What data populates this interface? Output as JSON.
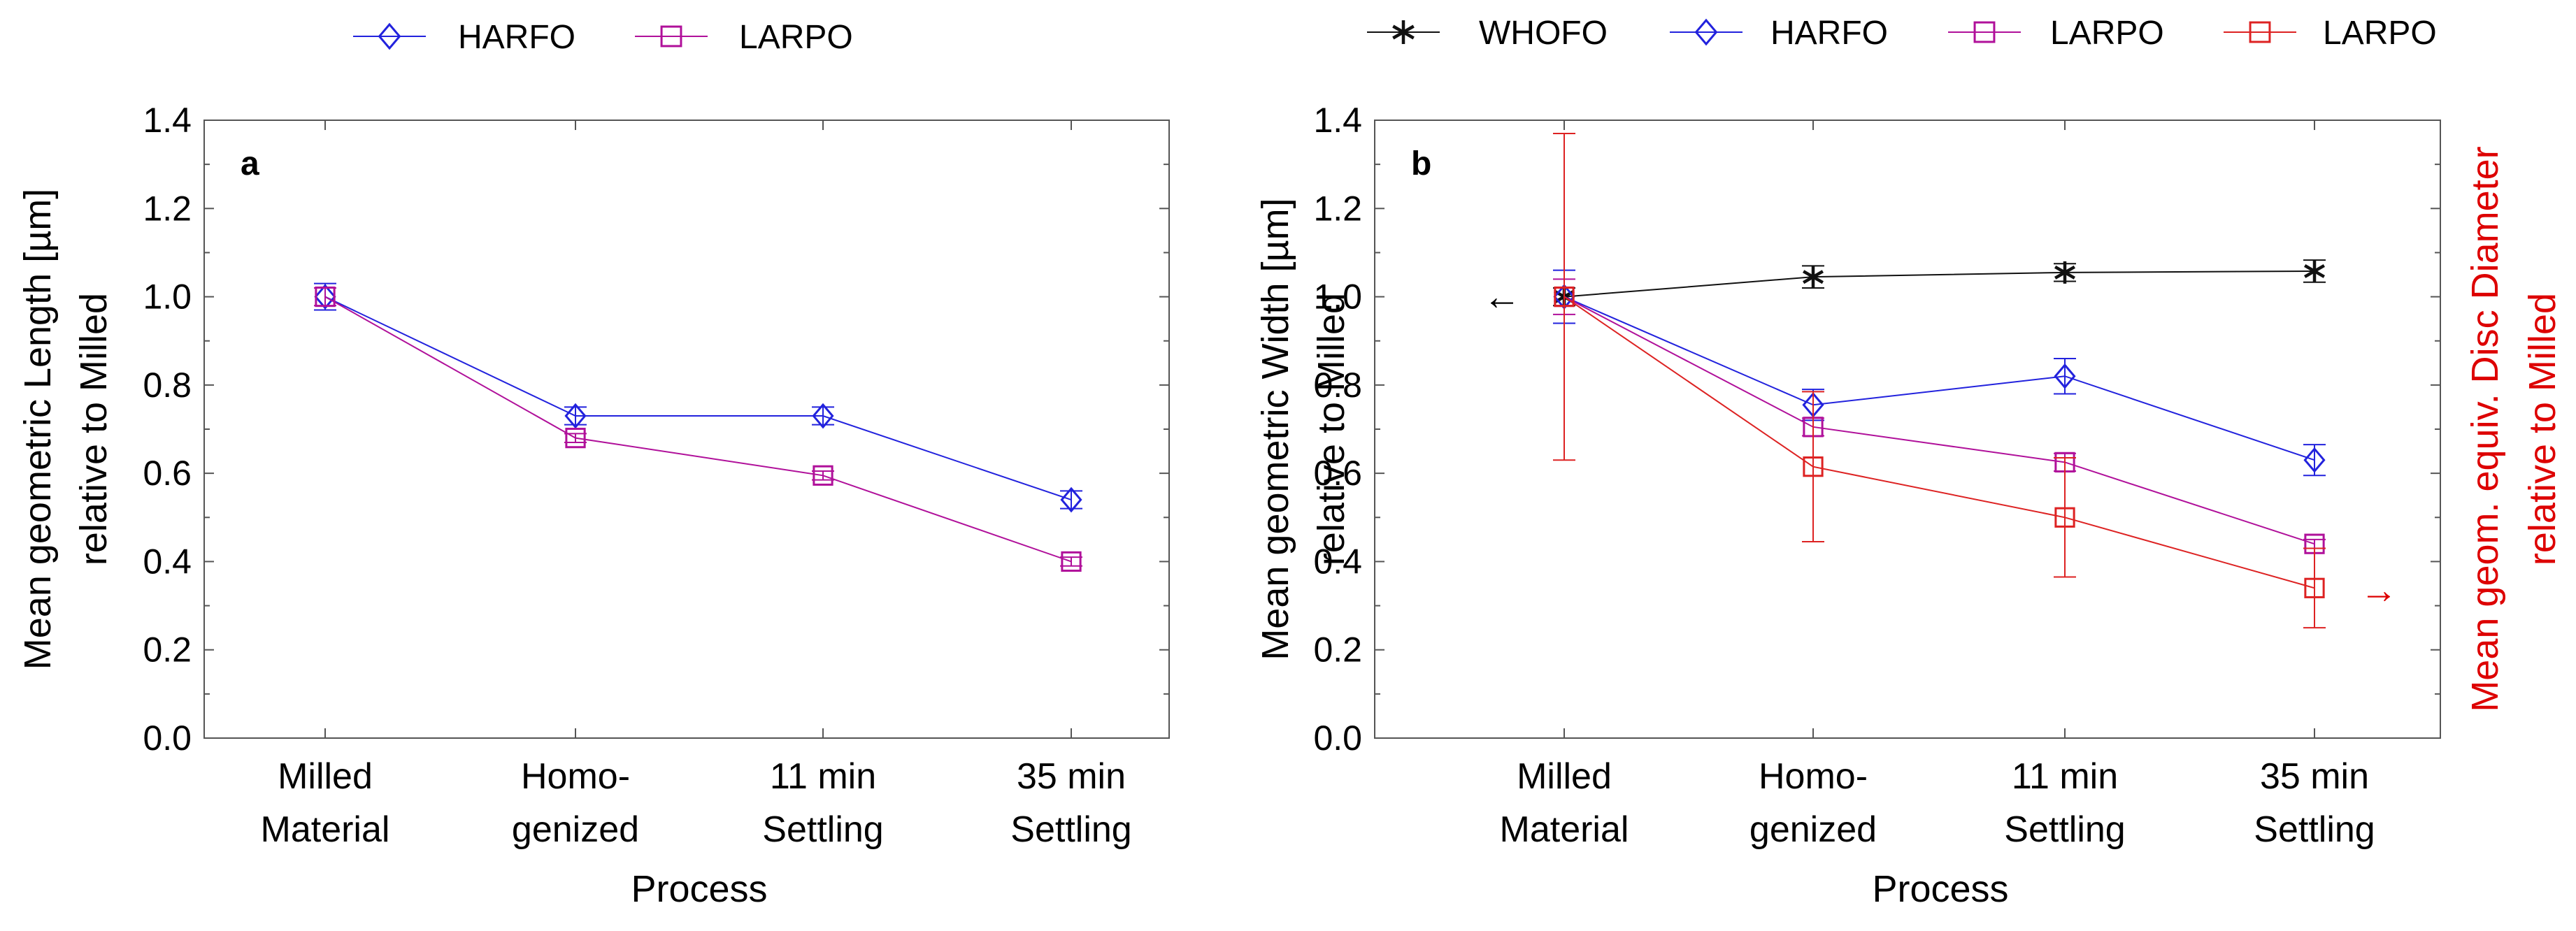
{
  "chart_data": [
    {
      "type": "line",
      "panel_label": "a",
      "ylabel": "Mean geometric Length [µm]",
      "ylabel2": "relative to Milled",
      "xlabel": "Process",
      "categories": [
        [
          "Milled",
          "Material"
        ],
        [
          "Homo-",
          "genized"
        ],
        [
          "11 min",
          "Settling"
        ],
        [
          "35 min",
          "Settling"
        ]
      ],
      "ylim": [
        0,
        1.4
      ],
      "yticks": [
        0.0,
        0.2,
        0.4,
        0.6,
        0.8,
        1.0,
        1.2,
        1.4
      ],
      "ytick_labels": [
        "0.0",
        "0.2",
        "0.4",
        "0.6",
        "0.8",
        "1.0",
        "1.2",
        "1.4"
      ],
      "legend_position": "top",
      "series": [
        {
          "name": "HARFO",
          "marker": "diamond",
          "color": "#2222dd",
          "values": [
            1.0,
            0.73,
            0.73,
            0.54
          ],
          "err": [
            0.03,
            0.02,
            0.02,
            0.02
          ]
        },
        {
          "name": "LARPO",
          "marker": "square",
          "color": "#b0109a",
          "values": [
            1.0,
            0.68,
            0.595,
            0.4
          ],
          "err": [
            0.02,
            0.01,
            0.01,
            0.01
          ]
        }
      ]
    },
    {
      "type": "line",
      "panel_label": "b",
      "ylabel": "Mean geometric Width [µm]",
      "ylabel2": "relative to Milled",
      "ylabel_right": "Mean geom. equiv. Disc Diameter",
      "ylabel_right2": "relative to Milled",
      "right_axis_color": "#dd0000",
      "xlabel": "Process",
      "categories": [
        [
          "Milled",
          "Material"
        ],
        [
          "Homo-",
          "genized"
        ],
        [
          "11 min",
          "Settling"
        ],
        [
          "35 min",
          "Settling"
        ]
      ],
      "ylim": [
        0,
        1.4
      ],
      "yticks": [
        0.0,
        0.2,
        0.4,
        0.6,
        0.8,
        1.0,
        1.2,
        1.4
      ],
      "ytick_labels": [
        "0.0",
        "0.2",
        "0.4",
        "0.6",
        "0.8",
        "1.0",
        "1.2",
        "1.4"
      ],
      "legend_position": "top",
      "left_arrow": "←",
      "right_arrow": "→",
      "series": [
        {
          "name": "WHOFO",
          "marker": "star",
          "color": "#111111",
          "values": [
            1.0,
            1.045,
            1.055,
            1.058
          ],
          "err": [
            0.02,
            0.025,
            0.02,
            0.025
          ]
        },
        {
          "name": "HARFO",
          "marker": "diamond",
          "color": "#2222dd",
          "values": [
            1.0,
            0.755,
            0.82,
            0.63
          ],
          "err": [
            0.06,
            0.035,
            0.04,
            0.035
          ]
        },
        {
          "name": "LARPO",
          "marker": "square",
          "color": "#b0109a",
          "values": [
            1.0,
            0.705,
            0.625,
            0.44
          ],
          "err": [
            0.04,
            0.02,
            0.02,
            0.01
          ]
        },
        {
          "name": "LARPO",
          "marker": "square",
          "color": "#dd2222",
          "values": [
            1.0,
            0.615,
            0.5,
            0.34
          ],
          "err": [
            0.37,
            0.17,
            0.135,
            0.09
          ]
        }
      ]
    }
  ]
}
